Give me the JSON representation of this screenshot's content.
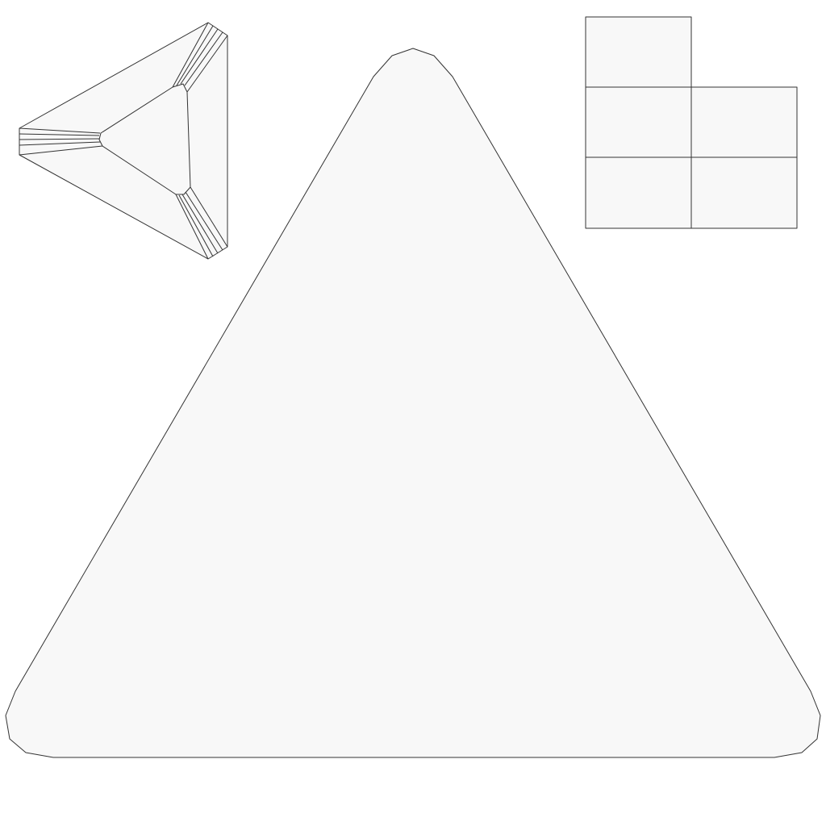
{
  "style": {
    "fill": "#f8f8f8",
    "stroke": "#333333",
    "background": "#ffffff"
  },
  "views": {
    "top_view": {
      "faces": 7
    },
    "front_view": {
      "faces": 1
    },
    "side_view": {
      "faces": 5
    }
  }
}
